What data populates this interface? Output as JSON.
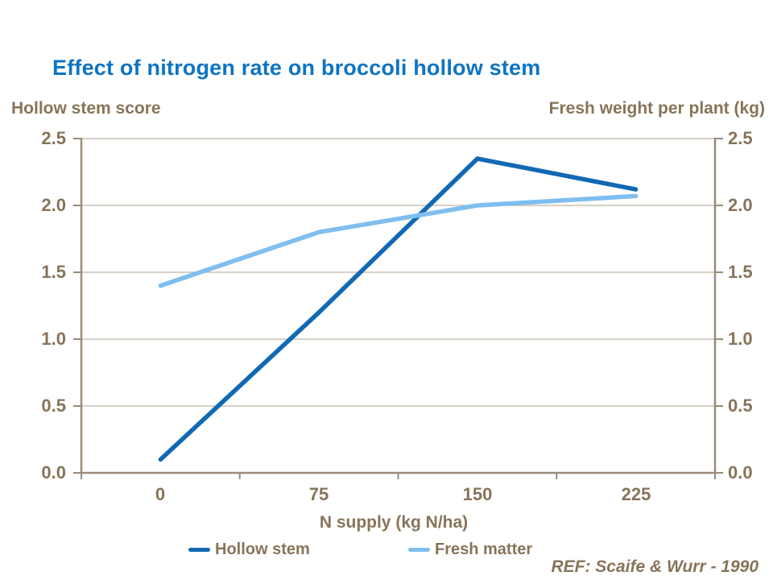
{
  "title": {
    "text": "Effect of nitrogen rate on broccoli hollow stem"
  },
  "axes": {
    "left_title": "Hollow stem score",
    "right_title": "Fresh weight per plant (kg)",
    "x_title": "N supply (kg N/ha)",
    "y_ticks": [
      "2.5",
      "2.0",
      "1.5",
      "1.0",
      "0.5",
      "0.0"
    ],
    "x_tick_labels": [
      "0",
      "75",
      "150",
      "225"
    ]
  },
  "legend": {
    "items": [
      {
        "label": "Hollow stem"
      },
      {
        "label": "Fresh matter"
      }
    ]
  },
  "ref_note": "REF: Scaife & Wurr - 1990",
  "colors": {
    "title_blue": "#0E74C4",
    "label_brown": "#877459",
    "axis": "#9A8B7B",
    "grid": "#C9C0B4",
    "hollow_stem_line": "#1169B4",
    "fresh_matter_line": "#7FBEEF"
  },
  "chart_data": {
    "type": "line",
    "categories": [
      0,
      75,
      150,
      225
    ],
    "series": [
      {
        "name": "Hollow stem",
        "color": "#1169B4",
        "values": [
          0.1,
          1.2,
          2.35,
          2.12
        ]
      },
      {
        "name": "Fresh matter",
        "color": "#7FBEEF",
        "values": [
          1.4,
          1.8,
          2.0,
          2.07
        ]
      }
    ],
    "title": "Effect of nitrogen rate on broccoli hollow stem",
    "xlabel": "N supply (kg N/ha)",
    "ylabel_left": "Hollow stem score",
    "ylabel_right": "Fresh weight per plant (kg)",
    "ylim": [
      0,
      2.5
    ],
    "y_step": 0.5,
    "grid": true,
    "tick_marks": "outside",
    "legend_position": "bottom"
  }
}
